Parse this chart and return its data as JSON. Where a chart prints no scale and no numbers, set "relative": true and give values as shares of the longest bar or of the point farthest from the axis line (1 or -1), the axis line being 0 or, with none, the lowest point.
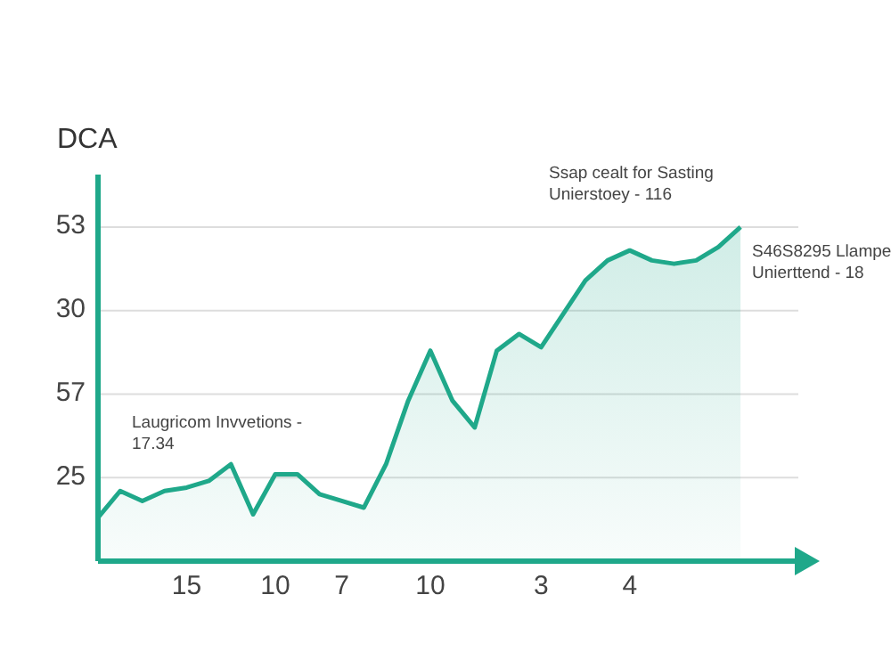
{
  "chart_data": {
    "type": "area",
    "ylabel": "DCA",
    "relative": true,
    "categories": [
      null,
      null,
      null,
      null,
      "15",
      null,
      null,
      null,
      "10",
      null,
      null,
      "7",
      null,
      null,
      null,
      "10",
      null,
      null,
      null,
      null,
      "3",
      null,
      null,
      null,
      "4",
      null,
      null,
      null,
      null,
      null
    ],
    "values": [
      0.13,
      0.21,
      0.18,
      0.21,
      0.22,
      0.24,
      0.29,
      0.14,
      0.26,
      0.26,
      0.2,
      0.18,
      0.16,
      0.29,
      0.48,
      0.63,
      0.48,
      0.4,
      0.63,
      0.68,
      0.64,
      0.74,
      0.84,
      0.9,
      0.93,
      0.9,
      0.89,
      0.9,
      0.94,
      1
    ],
    "color": "#1fa88a",
    "grid": "y",
    "legend": false,
    "marker": "none",
    "line_style": "solid",
    "annotations": [
      "Laugricom Invvetions - 17.34",
      "Ssap cealt for Sasting Unierstoey - 116",
      "S46S8295 Llampe Unierttend - 18",
      "25",
      "57",
      "30",
      "53"
    ]
  }
}
